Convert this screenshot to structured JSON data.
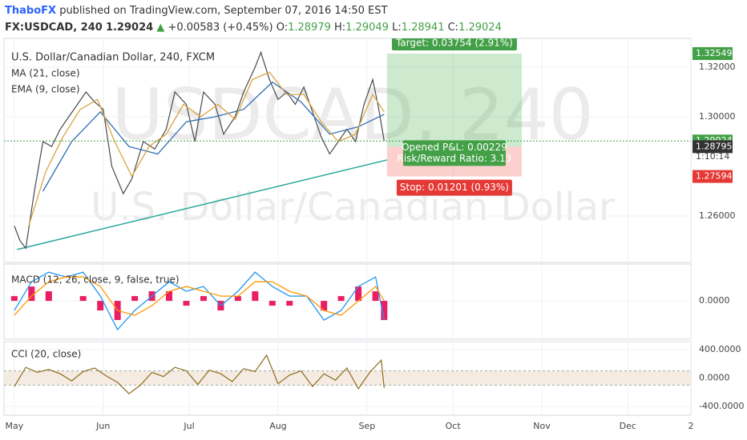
{
  "header": {
    "author": "ThaboFX",
    "published": "published on TradingView.com, September 07, 2016 14:50 EST",
    "symbol": "FX:USDCAD, 240",
    "last": "1.29024",
    "change_arrow": "▲",
    "change": "+0.00583 (+0.45%)",
    "ohlc": [
      {
        "label": "O:",
        "value": "1.28979"
      },
      {
        "label": "H:",
        "value": "1.29049"
      },
      {
        "label": "L:",
        "value": "1.28941"
      },
      {
        "label": "C:",
        "value": "1.29024"
      }
    ]
  },
  "watermark": {
    "symbol": "USDCAD, 240",
    "name": "U.S. Dollar/Canadian Dollar"
  },
  "chart_data": [
    {
      "type": "line",
      "title": "U.S. Dollar/Canadian Dollar, 240, FXCM",
      "color": "#4a4a4a",
      "x": [
        0,
        2,
        4,
        7,
        10,
        13,
        16,
        19,
        22,
        25,
        28,
        31,
        34,
        38,
        41,
        45,
        49,
        53,
        56,
        60,
        63,
        66,
        70,
        73,
        77,
        80,
        84,
        86,
        89,
        92,
        95,
        98,
        101,
        104,
        107,
        110,
        113,
        116,
        119,
        122,
        125,
        127,
        129
      ],
      "values": [
        1.256,
        1.25,
        1.247,
        1.27,
        1.29,
        1.288,
        1.295,
        1.3,
        1.305,
        1.31,
        1.306,
        1.303,
        1.28,
        1.269,
        1.275,
        1.29,
        1.287,
        1.295,
        1.31,
        1.305,
        1.29,
        1.31,
        1.305,
        1.293,
        1.3,
        1.31,
        1.32,
        1.326,
        1.315,
        1.307,
        1.31,
        1.305,
        1.312,
        1.302,
        1.292,
        1.285,
        1.29,
        1.295,
        1.29,
        1.305,
        1.315,
        1.304,
        1.29024
      ],
      "series": [
        {
          "name": "MA (21, close)",
          "color": "#2f6db5",
          "x": [
            10,
            20,
            30,
            40,
            50,
            60,
            70,
            80,
            90,
            100,
            110,
            120,
            129
          ],
          "values": [
            1.27,
            1.29,
            1.302,
            1.288,
            1.285,
            1.298,
            1.3,
            1.303,
            1.314,
            1.306,
            1.293,
            1.296,
            1.301
          ]
        },
        {
          "name": "EMA (9, close)",
          "color": "#d9a441",
          "x": [
            5,
            11,
            17,
            23,
            29,
            35,
            41,
            47,
            53,
            59,
            65,
            71,
            77,
            83,
            89,
            95,
            101,
            107,
            113,
            119,
            125,
            129
          ],
          "values": [
            1.256,
            1.278,
            1.292,
            1.303,
            1.307,
            1.29,
            1.276,
            1.288,
            1.293,
            1.305,
            1.3,
            1.305,
            1.299,
            1.315,
            1.318,
            1.309,
            1.309,
            1.298,
            1.29,
            1.293,
            1.309,
            1.302
          ]
        }
      ],
      "trendline": {
        "x": [
          1,
          130
        ],
        "y": [
          1.2465,
          1.2826
        ],
        "color": "#26a69a"
      },
      "position": {
        "x": [
          130,
          177
        ],
        "entry": 1.28795,
        "target": 1.32549,
        "stop": 1.27594,
        "target_label": "Target: 0.03754 (2.91%)",
        "pnl_label": "Opened P&L: 0.00229",
        "rr_label": "Risk/Reward Ratio: 3.13",
        "stop_label": "Stop: 0.01201 (0.93%)"
      },
      "ylim": [
        1.2413,
        1.3316
      ],
      "yticks": [
        {
          "value": 1.32,
          "label": "1.32000"
        },
        {
          "value": 1.3,
          "label": "1.30000"
        },
        {
          "value": 1.26,
          "label": "1.26000"
        }
      ],
      "price_tags": [
        {
          "value": 1.32549,
          "color": "#43a047"
        },
        {
          "value": 1.29024,
          "color": "#43a047"
        },
        {
          "value": 1.28795,
          "color": "#333333"
        },
        {
          "value": 1.27594,
          "color": "#e53935"
        }
      ],
      "countdown": "1:10:14",
      "xlim": [
        -3.6,
        236
      ],
      "xticks": [
        {
          "value": 0,
          "label": "May"
        },
        {
          "value": 31,
          "label": "Jun"
        },
        {
          "value": 61,
          "label": "Jul"
        },
        {
          "value": 92,
          "label": "Aug"
        },
        {
          "value": 123,
          "label": "Sep"
        },
        {
          "value": 153,
          "label": "Oct"
        },
        {
          "value": 184,
          "label": "Nov"
        },
        {
          "value": 214,
          "label": "Dec"
        },
        {
          "value": 236,
          "label": "2"
        }
      ]
    },
    {
      "type": "macd",
      "title": "MACD (12, 26, close, 9, false, true)",
      "x": [
        0,
        6,
        12,
        18,
        24,
        30,
        36,
        42,
        48,
        54,
        60,
        66,
        72,
        78,
        84,
        90,
        96,
        102,
        108,
        114,
        120,
        126,
        129
      ],
      "series": [
        {
          "name": "MACD",
          "color": "#2196f3",
          "values": [
            -0.002,
            0.004,
            0.006,
            0.005,
            0.006,
            0.001,
            -0.006,
            -0.002,
            0.001,
            0.004,
            0.002,
            0.003,
            -0.001,
            0.002,
            0.006,
            0.003,
            0.001,
            0.001,
            -0.004,
            -0.002,
            0.003,
            0.005,
            -0.004
          ]
        },
        {
          "name": "Signal",
          "color": "#ff9800",
          "values": [
            -0.003,
            0.001,
            0.004,
            0.005,
            0.005,
            0.003,
            -0.002,
            -0.003,
            -0.001,
            0.002,
            0.003,
            0.002,
            0.001,
            0.001,
            0.004,
            0.004,
            0.002,
            0.001,
            -0.002,
            -0.003,
            0,
            0.003,
            0
          ]
        },
        {
          "name": "Histogram",
          "color": "#e91e63",
          "values": [
            0.001,
            0.003,
            0.002,
            0,
            0.001,
            -0.002,
            -0.004,
            0.001,
            0.002,
            0.002,
            -0.001,
            0.001,
            -0.002,
            0.001,
            0.002,
            -0.001,
            -0.001,
            0,
            -0.002,
            0.001,
            0.003,
            0.002,
            -0.004
          ]
        }
      ],
      "ylim": [
        -0.008,
        0.0077
      ],
      "yticks": [
        {
          "value": 0,
          "label": "0.0000"
        }
      ]
    },
    {
      "type": "cci",
      "title": "CCI (20, close)",
      "color": "#8b6c1e",
      "x": [
        0,
        4,
        8,
        12,
        16,
        20,
        24,
        28,
        32,
        36,
        40,
        44,
        48,
        52,
        56,
        60,
        64,
        68,
        72,
        76,
        80,
        84,
        88,
        92,
        96,
        100,
        104,
        108,
        112,
        116,
        120,
        124,
        128,
        129
      ],
      "values": [
        -120,
        150,
        80,
        120,
        60,
        -40,
        90,
        140,
        30,
        -60,
        -220,
        -100,
        80,
        20,
        150,
        100,
        -90,
        110,
        60,
        -50,
        130,
        90,
        320,
        -80,
        40,
        100,
        -120,
        60,
        -30,
        140,
        -150,
        80,
        250,
        -140
      ],
      "band": [
        -100,
        100
      ],
      "ylim": [
        -522,
        511
      ],
      "yticks": [
        {
          "value": 400,
          "label": "400.0000"
        },
        {
          "value": 0,
          "label": "0.0000"
        },
        {
          "value": -400,
          "label": "-400.0000"
        }
      ]
    }
  ]
}
